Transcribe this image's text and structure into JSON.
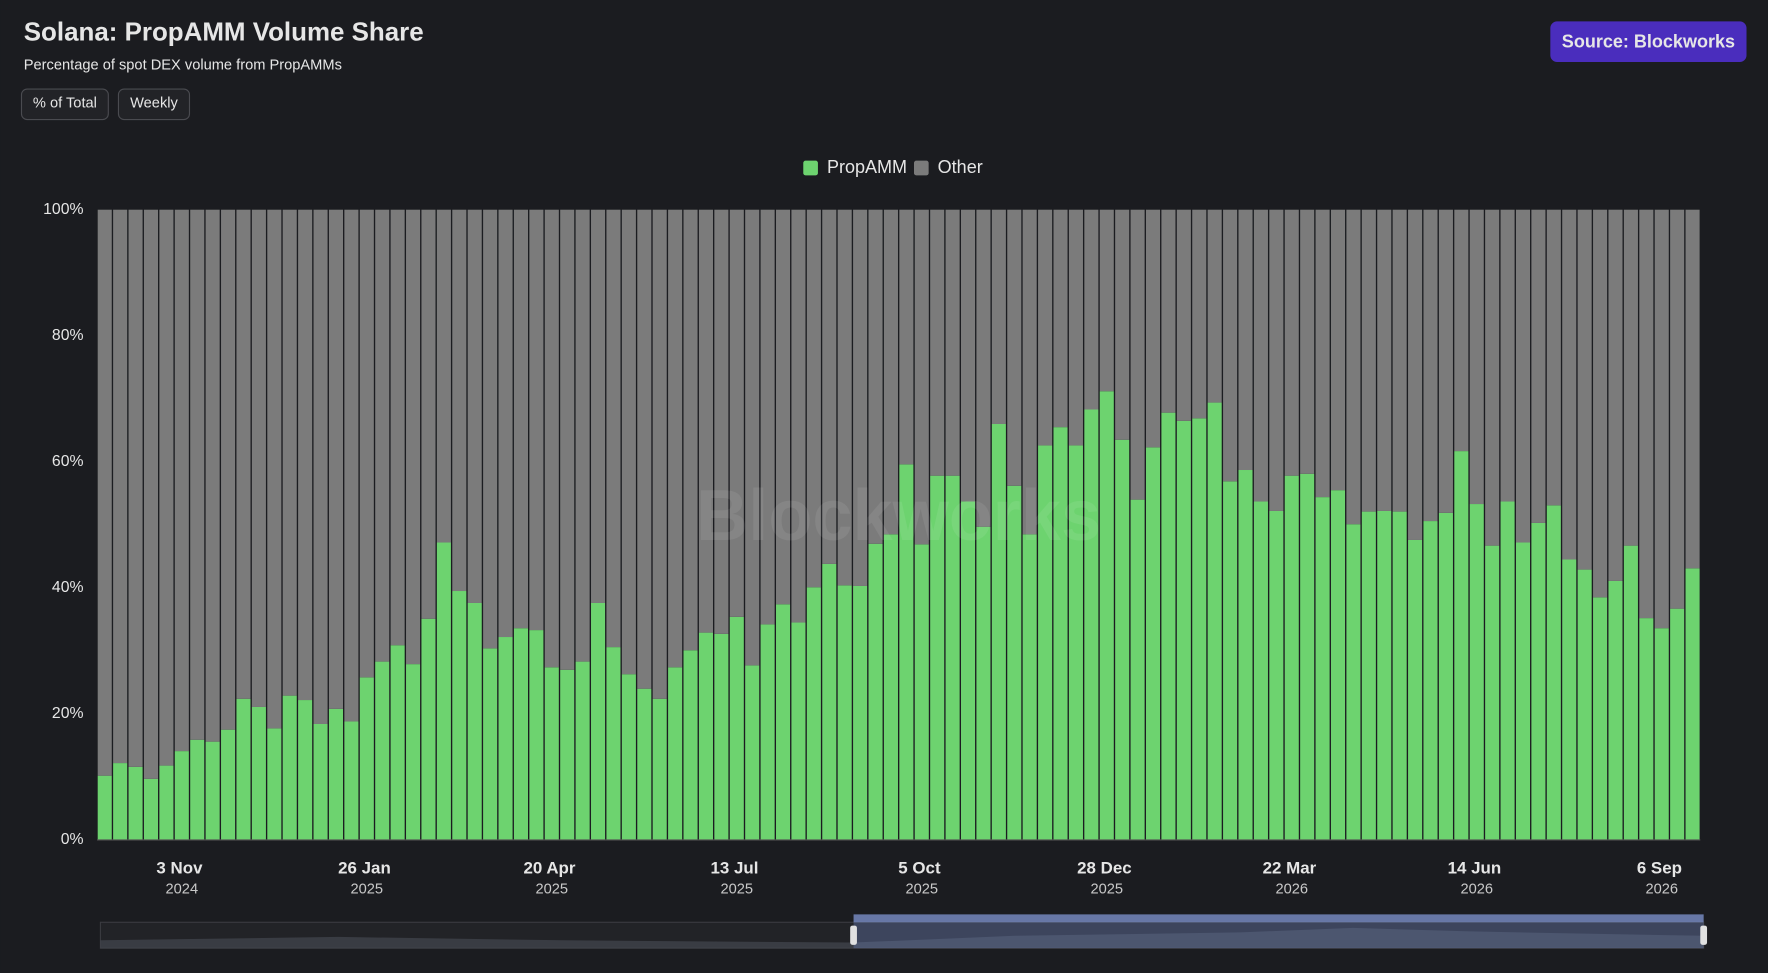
{
  "header": {
    "title": "Solana: PropAMM Volume Share",
    "subtitle": "Percentage of spot DEX volume from PropAMMs",
    "buttons": [
      "% of Total",
      "Weekly"
    ],
    "source": "Source: Blockworks",
    "watermark": "Blockworks"
  },
  "chart_data": {
    "type": "stacked-bar",
    "categories": [
      null,
      null,
      null,
      null,
      null,
      "3 Nov 2024",
      null,
      null,
      null,
      null,
      null,
      null,
      null,
      null,
      null,
      null,
      null,
      "26 Jan 2025",
      null,
      null,
      null,
      null,
      null,
      null,
      null,
      null,
      null,
      null,
      null,
      "20 Apr 2025",
      null,
      null,
      null,
      null,
      null,
      null,
      null,
      null,
      null,
      null,
      null,
      "13 Jul 2025",
      null,
      null,
      null,
      null,
      null,
      null,
      null,
      null,
      null,
      null,
      null,
      "5 Oct 2025",
      null,
      null,
      null,
      null,
      null,
      null,
      null,
      null,
      null,
      null,
      null,
      "28 Dec 2025",
      null,
      null,
      null,
      null,
      null,
      null,
      null,
      null,
      null,
      null,
      null,
      "22 Mar 2026",
      null,
      null,
      null,
      null,
      null,
      null,
      null,
      null,
      null,
      null,
      null,
      "14 Jun 2026",
      null,
      null,
      null,
      null,
      null,
      null,
      null,
      null,
      null,
      null,
      null,
      "6 Sep 2026",
      null,
      null
    ],
    "series": [
      {
        "name": "PropAMM",
        "color": "#6dd36f",
        "values": [
          10.2,
          12.2,
          11.6,
          9.7,
          11.8,
          14.1,
          15.9,
          15.6,
          17.5,
          22.4,
          21.1,
          17.7,
          22.9,
          22.2,
          18.4,
          20.8,
          18.8,
          25.8,
          28.3,
          30.9,
          27.9,
          35.1,
          47.2,
          39.5,
          37.6,
          30.4,
          32.2,
          33.6,
          33.3,
          27.4,
          27.0,
          28.3,
          37.6,
          30.6,
          26.3,
          24.0,
          22.4,
          27.4,
          30.1,
          32.9,
          32.7,
          35.4,
          27.7,
          34.2,
          37.4,
          34.5,
          40.1,
          43.8,
          40.4,
          40.3,
          47.0,
          48.5,
          59.6,
          46.9,
          57.8,
          57.8,
          53.7,
          49.7,
          66.0,
          56.2,
          48.5,
          62.6,
          65.5,
          62.6,
          68.3,
          71.2,
          63.5,
          54.0,
          62.3,
          67.8,
          66.5,
          66.9,
          69.4,
          56.9,
          58.7,
          53.7,
          52.2,
          57.8,
          58.1,
          54.4,
          55.5,
          50.1,
          52.1,
          52.2,
          52.1,
          47.6,
          50.6,
          51.9,
          61.7,
          53.3,
          46.7,
          53.7,
          47.2,
          50.3,
          53.1,
          44.5,
          42.9,
          38.5,
          41.1,
          46.7,
          35.2,
          33.6,
          36.7,
          43.1
        ]
      },
      {
        "name": "Other",
        "color": "#7b7b7b",
        "values": [
          89.8,
          87.8,
          88.4,
          90.3,
          88.2,
          85.9,
          84.1,
          84.4,
          82.5,
          77.6,
          78.9,
          82.3,
          77.1,
          77.8,
          81.6,
          79.2,
          81.2,
          74.2,
          71.7,
          69.1,
          72.1,
          64.9,
          52.8,
          60.5,
          62.4,
          69.6,
          67.8,
          66.4,
          66.7,
          72.6,
          73.0,
          71.7,
          62.4,
          69.4,
          73.7,
          76.0,
          77.6,
          72.6,
          69.9,
          67.1,
          67.3,
          64.6,
          72.3,
          65.8,
          62.6,
          65.5,
          59.9,
          56.2,
          59.6,
          59.7,
          53.0,
          51.5,
          40.4,
          53.1,
          42.2,
          42.2,
          46.3,
          50.3,
          34.0,
          43.8,
          51.5,
          37.4,
          34.5,
          37.4,
          31.7,
          28.8,
          36.5,
          46.0,
          37.7,
          32.2,
          33.5,
          33.1,
          30.6,
          43.1,
          41.3,
          46.3,
          47.8,
          42.2,
          41.9,
          45.6,
          44.5,
          49.9,
          47.9,
          47.8,
          47.9,
          52.4,
          49.4,
          48.1,
          38.3,
          46.7,
          53.3,
          46.3,
          52.8,
          49.7,
          46.9,
          55.5,
          57.1,
          61.5,
          58.9,
          53.3,
          64.8,
          66.4,
          63.3,
          56.9
        ]
      }
    ],
    "ylim": [
      0,
      100
    ],
    "yticks": [
      {
        "value": 0,
        "label": "0%"
      },
      {
        "value": 20,
        "label": "20%"
      },
      {
        "value": 40,
        "label": "40%"
      },
      {
        "value": 60,
        "label": "60%"
      },
      {
        "value": 80,
        "label": "80%"
      },
      {
        "value": 100,
        "label": "100%"
      }
    ],
    "legend": "top"
  }
}
